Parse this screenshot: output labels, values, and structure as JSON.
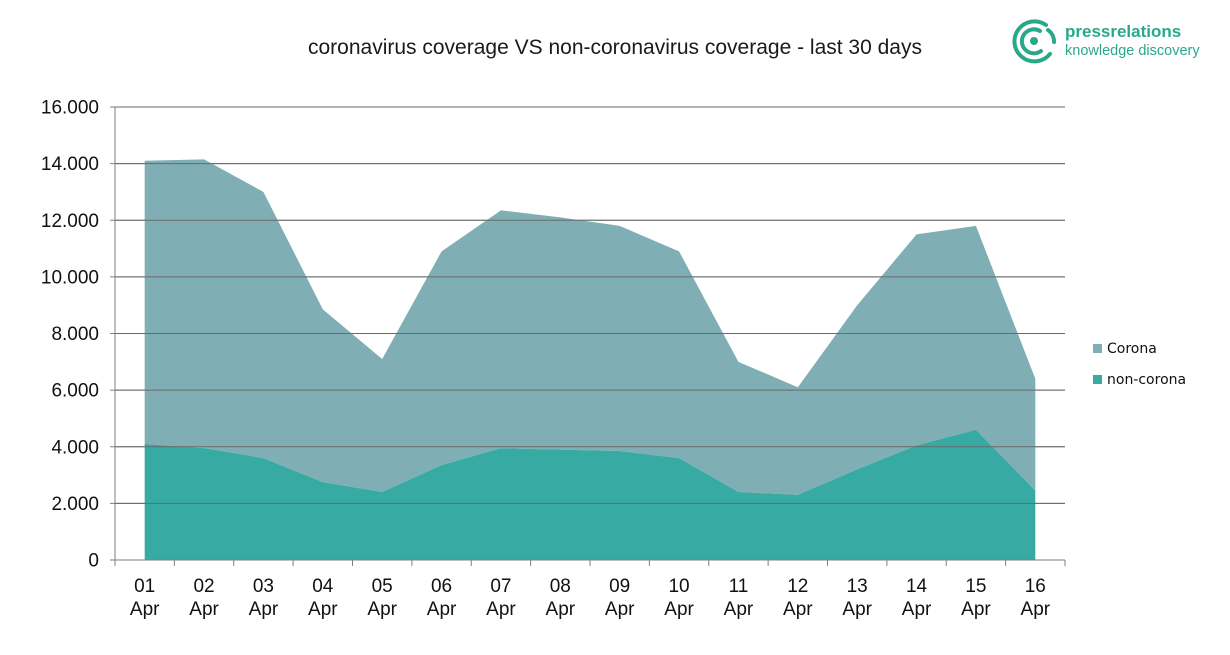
{
  "title": "coronavirus coverage VS non-coronavirus coverage - last 30 days",
  "logo": {
    "name": "pressrelations",
    "tagline": "knowledge discovery",
    "color": "#2aa889"
  },
  "chart_data": {
    "type": "area",
    "stacked": true,
    "title": "coronavirus coverage VS non-coronavirus coverage - last 30 days",
    "xlabel": "",
    "ylabel": "",
    "categories": [
      "01 Apr",
      "02 Apr",
      "03 Apr",
      "04 Apr",
      "05 Apr",
      "06 Apr",
      "07 Apr",
      "08 Apr",
      "09 Apr",
      "10 Apr",
      "11 Apr",
      "12 Apr",
      "13 Apr",
      "14 Apr",
      "15 Apr",
      "16 Apr"
    ],
    "ylim": [
      0,
      16000
    ],
    "yticks": [
      0,
      2000,
      4000,
      6000,
      8000,
      10000,
      12000,
      14000,
      16000
    ],
    "ytick_labels": [
      "0",
      "2.000",
      "4.000",
      "6.000",
      "8.000",
      "10.000",
      "12.000",
      "14.000",
      "16.000"
    ],
    "grid": true,
    "legend_position": "right",
    "series": [
      {
        "name": "Corona",
        "color": "#7fafb5",
        "values": [
          10000,
          10200,
          9400,
          6100,
          4700,
          7550,
          8400,
          8200,
          7950,
          7300,
          4600,
          3800,
          5800,
          7450,
          7200,
          3950
        ]
      },
      {
        "name": "non-corona",
        "color": "#37aaa4",
        "values": [
          4100,
          3950,
          3600,
          2750,
          2400,
          3350,
          3950,
          3900,
          3850,
          3600,
          2400,
          2300,
          3200,
          4050,
          4600,
          2450
        ]
      }
    ]
  }
}
